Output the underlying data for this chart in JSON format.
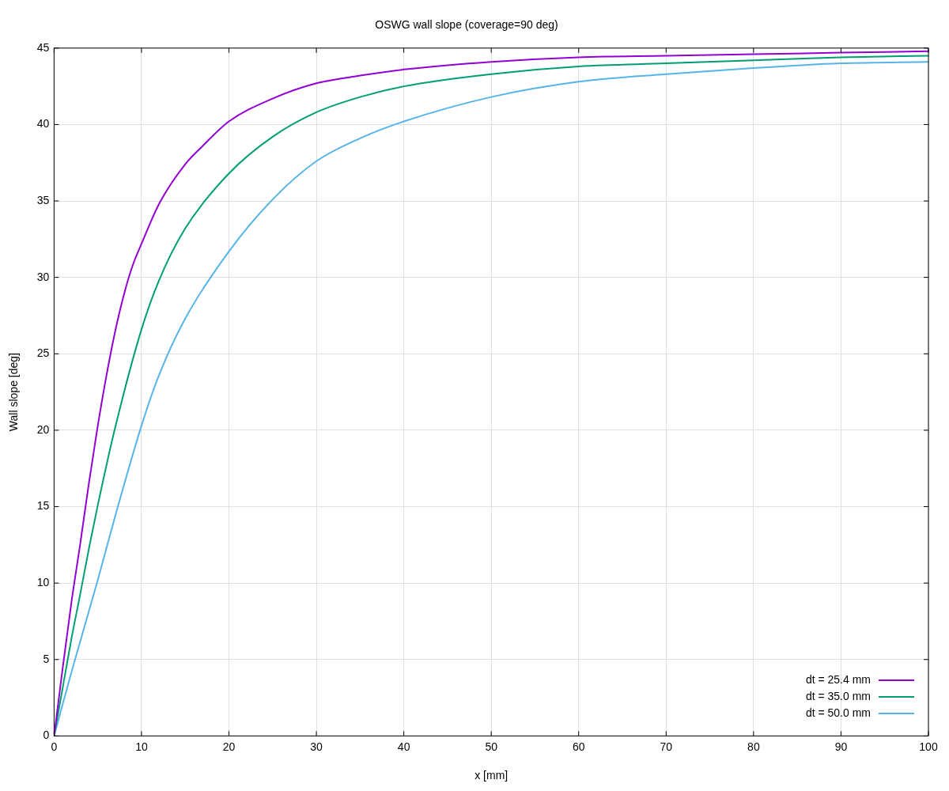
{
  "chart_data": {
    "type": "line",
    "title": "OSWG wall slope (coverage=90 deg)",
    "xlabel": "x [mm]",
    "ylabel": "Wall slope [deg]",
    "xlim": [
      0,
      100
    ],
    "xticks": [
      0,
      10,
      20,
      30,
      40,
      50,
      60,
      70,
      80,
      90,
      100
    ],
    "ylim": [
      0,
      45
    ],
    "yticks": [
      0,
      5,
      10,
      15,
      20,
      25,
      30,
      35,
      40,
      45
    ],
    "grid": true,
    "legend": "bottom right",
    "marker": "none",
    "line_style": "solid",
    "series": [
      {
        "name": "dt = 25.4 mm",
        "color": "#9400d3",
        "x": [
          0,
          1,
          2,
          3,
          4,
          5,
          6,
          7,
          8,
          9,
          10,
          12,
          15,
          17,
          20,
          25,
          30,
          35,
          40,
          50,
          60,
          70,
          80,
          90,
          100
        ],
        "values": [
          0,
          4.5,
          8.8,
          12.6,
          16.6,
          20.3,
          23.6,
          26.5,
          28.9,
          30.8,
          32.2,
          34.8,
          37.4,
          38.6,
          40.2,
          41.7,
          42.7,
          43.2,
          43.6,
          44.1,
          44.4,
          44.5,
          44.6,
          44.7,
          44.8
        ]
      },
      {
        "name": "dt = 35.0 mm",
        "color": "#009e73",
        "x": [
          0,
          1,
          2,
          3,
          4,
          5,
          7,
          10,
          12,
          15,
          20,
          25,
          30,
          35,
          40,
          50,
          60,
          70,
          80,
          90,
          100
        ],
        "values": [
          0,
          3.2,
          6.4,
          9.3,
          12.3,
          15.1,
          20.2,
          26.6,
          29.8,
          33.2,
          36.8,
          39.2,
          40.8,
          41.8,
          42.5,
          43.3,
          43.8,
          44.0,
          44.2,
          44.4,
          44.5
        ]
      },
      {
        "name": "dt = 50.0 mm",
        "color": "#56b4e9",
        "x": [
          0,
          2,
          5,
          7,
          10,
          12,
          15,
          20,
          25,
          30,
          35,
          40,
          50,
          60,
          70,
          80,
          90,
          100
        ],
        "values": [
          0,
          4.2,
          10.2,
          14.4,
          20.3,
          23.6,
          27.3,
          31.7,
          35.1,
          37.6,
          39.1,
          40.2,
          41.8,
          42.8,
          43.3,
          43.7,
          44.0,
          44.1
        ]
      }
    ]
  }
}
